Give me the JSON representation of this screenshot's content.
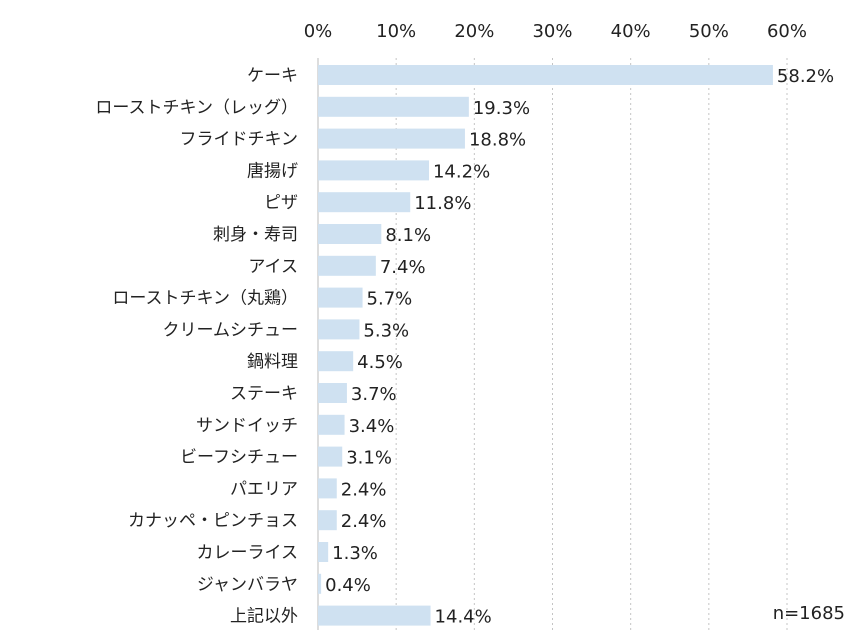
{
  "chart_data": {
    "type": "bar",
    "orientation": "horizontal",
    "title": "",
    "xlabel": "",
    "ylabel": "",
    "xlim": [
      0,
      60
    ],
    "x_ticks": [
      "0%",
      "10%",
      "20%",
      "30%",
      "40%",
      "50%",
      "60%"
    ],
    "tick_values": [
      0,
      10,
      20,
      30,
      40,
      50,
      60
    ],
    "grid": true,
    "bar_color": "#cfe1f1",
    "categories": [
      "ケーキ",
      "ローストチキン（レッグ）",
      "フライドチキン",
      "唐揚げ",
      "ピザ",
      "刺身・寿司",
      "アイス",
      "ローストチキン（丸鶏）",
      "クリームシチュー",
      "鍋料理",
      "ステーキ",
      "サンドイッチ",
      "ビーフシチュー",
      "パエリア",
      "カナッペ・ピンチョス",
      "カレーライス",
      "ジャンバラヤ",
      "上記以外"
    ],
    "values": [
      58.2,
      19.3,
      18.8,
      14.2,
      11.8,
      8.1,
      7.4,
      5.7,
      5.3,
      4.5,
      3.7,
      3.4,
      3.1,
      2.4,
      2.4,
      1.3,
      0.4,
      14.4
    ],
    "value_labels": [
      "58.2%",
      "19.3%",
      "18.8%",
      "14.2%",
      "11.8%",
      "8.1%",
      "7.4%",
      "5.7%",
      "5.3%",
      "4.5%",
      "3.7%",
      "3.4%",
      "3.1%",
      "2.4%",
      "2.4%",
      "1.3%",
      "0.4%",
      "14.4%"
    ],
    "note": "n=1685"
  }
}
